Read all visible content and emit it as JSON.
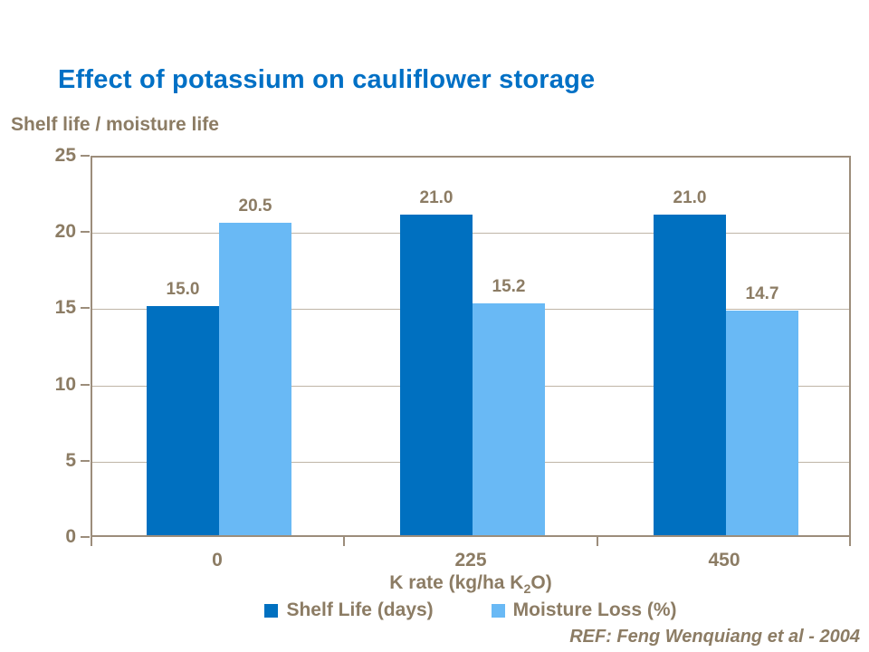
{
  "slide": {
    "reference": "REF: Feng Wenquiang et al - 2004"
  },
  "chart_data": {
    "type": "bar",
    "title": "Effect of potassium on cauliflower storage",
    "ylabel": "Shelf life / moisture life",
    "xlabel_parts": {
      "pre": "K rate (kg/ha K",
      "sub": "2",
      "post": "O)"
    },
    "categories": [
      "0",
      "225",
      "450"
    ],
    "series": [
      {
        "name": "Shelf Life (days)",
        "color": "#0070C0",
        "values": [
          15.0,
          21.0,
          21.0
        ]
      },
      {
        "name": "Moisture Loss (%)",
        "color": "#69B9F5",
        "values": [
          20.5,
          15.2,
          14.7
        ]
      }
    ],
    "ylim": [
      0,
      25
    ],
    "yticks": [
      0,
      5,
      10,
      15,
      20,
      25
    ],
    "grid": true,
    "legend_position": "bottom",
    "value_label_decimals": 1
  },
  "colors": {
    "title": "#0070C5",
    "text": "#8C7C64",
    "gridline": "#BFB5A7",
    "axis": "#9C8D7B",
    "background": "#FFFFFF",
    "series_dark_blue": "#0070C0",
    "series_light_blue": "#69B9F5"
  }
}
